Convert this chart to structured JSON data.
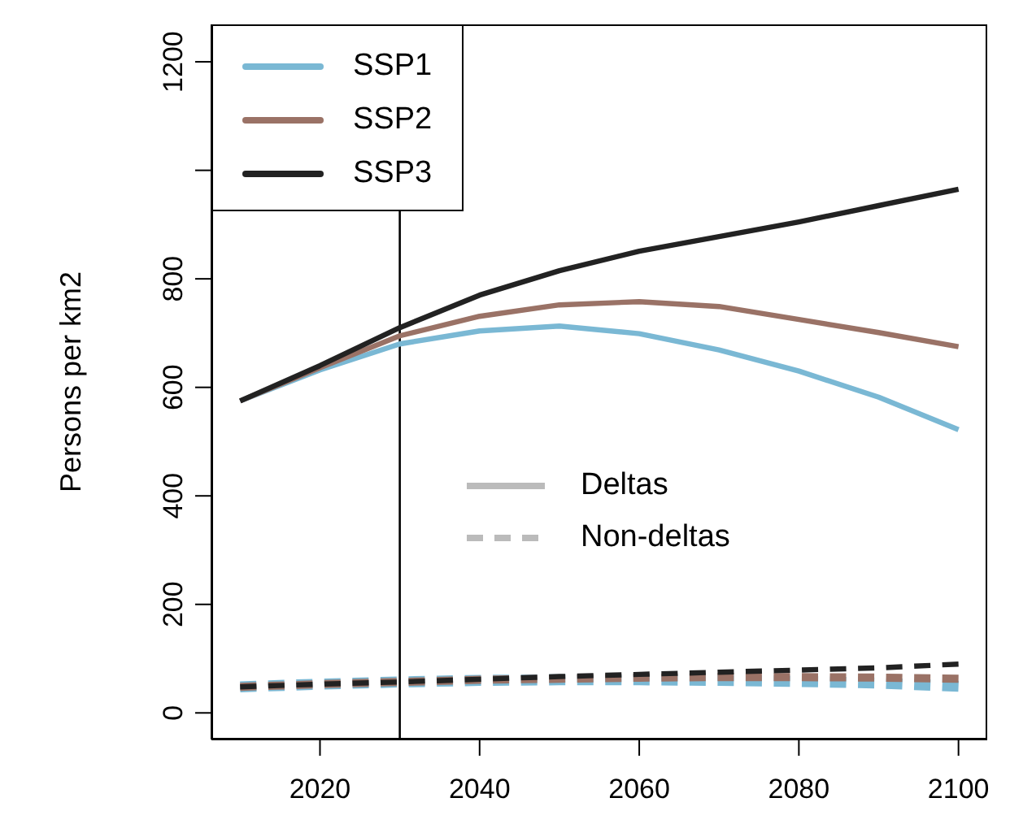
{
  "chart_data": {
    "type": "line",
    "ylabel": "Persons per km2",
    "x": [
      2010,
      2020,
      2030,
      2040,
      2050,
      2060,
      2070,
      2080,
      2090,
      2100
    ],
    "xlim": [
      2006.4,
      2103.6
    ],
    "xticks": [
      2020,
      2040,
      2060,
      2080,
      2100
    ],
    "ylim": [
      -49,
      1269
    ],
    "yticks": [
      0,
      200,
      400,
      600,
      800,
      {
        "value": 1000,
        "label": null
      },
      1200
    ],
    "grid": false,
    "legend": "top left",
    "marker": "none",
    "series": [
      {
        "name": "SSP1",
        "color": "#7ab8d4",
        "line_style": "solid",
        "values": [
          575,
          632,
          680,
          704,
          713,
          699,
          669,
          630,
          582,
          522
        ]
      },
      {
        "name": "SSP2",
        "color": "#9a7266",
        "line_style": "solid",
        "values": [
          575,
          636,
          695,
          731,
          752,
          758,
          749,
          725,
          701,
          675
        ]
      },
      {
        "name": "SSP3",
        "color": "#222222",
        "line_style": "solid",
        "values": [
          575,
          640,
          710,
          770,
          815,
          851,
          878,
          905,
          935,
          965
        ]
      },
      {
        "color": "#7ab8d4",
        "line_style": "dashed",
        "values": [
          48,
          53,
          57,
          60,
          61,
          61,
          60,
          58,
          55,
          49
        ]
      },
      {
        "color": "#9a7266",
        "line_style": "dashed",
        "values": [
          48,
          53,
          57,
          61,
          63,
          65,
          66,
          66,
          65,
          63
        ]
      },
      {
        "color": "#222222",
        "line_style": "dashed",
        "values": [
          48,
          53,
          57,
          62,
          67,
          71,
          75,
          79,
          83,
          90
        ]
      }
    ],
    "ref_lines": [
      {
        "axis": "x",
        "value": 2030,
        "color": "#000000",
        "line_style": "solid"
      }
    ],
    "annotations": [
      "Deltas",
      "Non-deltas"
    ]
  }
}
